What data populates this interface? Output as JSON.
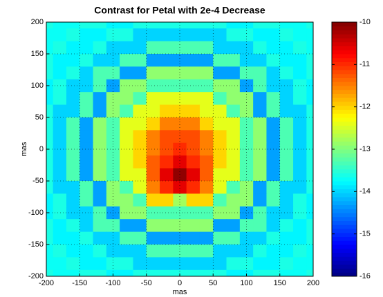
{
  "chart_data": {
    "type": "heatmap",
    "title": "Contrast for Petal with 2e-4 Decrease",
    "xlabel": "mas",
    "ylabel": "mas",
    "colormap": "jet",
    "grid": true,
    "xlim": [
      -200,
      200
    ],
    "ylim": [
      -200,
      200
    ],
    "xticks": [
      -200,
      -150,
      -100,
      -50,
      0,
      50,
      100,
      150,
      200
    ],
    "yticks": [
      -200,
      -150,
      -100,
      -50,
      0,
      50,
      100,
      150,
      200
    ],
    "clim": [
      -16,
      -10
    ],
    "cticks": [
      -16,
      -15,
      -14,
      -13,
      -12,
      -11,
      -10
    ],
    "x": [
      -200,
      -180,
      -160,
      -140,
      -120,
      -100,
      -80,
      -60,
      -40,
      -20,
      0,
      20,
      40,
      60,
      80,
      100,
      120,
      140,
      160,
      180,
      200
    ],
    "y": [
      200,
      180,
      160,
      140,
      120,
      100,
      80,
      60,
      40,
      20,
      0,
      -20,
      -40,
      -60,
      -80,
      -100,
      -120,
      -140,
      -160,
      -180,
      -200
    ],
    "z": [
      [
        -13.6,
        -13.7,
        -13.7,
        -13.6,
        -13.6,
        -13.8,
        -13.8,
        -13.6,
        -13.6,
        -13.6,
        -13.6,
        -13.6,
        -13.6,
        -13.6,
        -13.8,
        -13.8,
        -13.6,
        -13.6,
        -13.7,
        -13.7,
        -13.6
      ],
      [
        -13.7,
        -13.7,
        -13.6,
        -13.8,
        -13.8,
        -13.6,
        -13.6,
        -14.0,
        -14.0,
        -14.0,
        -14.0,
        -14.0,
        -14.0,
        -14.0,
        -13.6,
        -13.6,
        -13.8,
        -13.8,
        -13.6,
        -13.7,
        -13.7
      ],
      [
        -13.7,
        -13.6,
        -13.8,
        -13.8,
        -13.6,
        -14.0,
        -14.0,
        -14.0,
        -13.3,
        -13.3,
        -13.3,
        -13.3,
        -13.3,
        -14.0,
        -14.0,
        -14.0,
        -13.6,
        -13.8,
        -13.8,
        -13.6,
        -13.7
      ],
      [
        -13.6,
        -13.8,
        -13.8,
        -13.6,
        -14.0,
        -14.0,
        -13.3,
        -13.3,
        -14.3,
        -14.3,
        -14.3,
        -14.3,
        -14.3,
        -13.3,
        -13.3,
        -14.0,
        -14.0,
        -13.6,
        -13.8,
        -13.8,
        -13.6
      ],
      [
        -13.6,
        -13.8,
        -13.6,
        -14.0,
        -13.3,
        -13.3,
        -14.3,
        -14.3,
        -12.9,
        -12.9,
        -12.9,
        -12.9,
        -12.9,
        -14.3,
        -14.3,
        -13.3,
        -13.3,
        -14.0,
        -13.6,
        -13.8,
        -13.6
      ],
      [
        -13.8,
        -13.6,
        -14.0,
        -14.0,
        -13.3,
        -14.3,
        -12.9,
        -12.9,
        -13.3,
        -13.3,
        -13.3,
        -13.3,
        -13.3,
        -12.9,
        -12.9,
        -14.3,
        -13.3,
        -14.0,
        -14.0,
        -13.6,
        -13.8
      ],
      [
        -13.8,
        -13.6,
        -14.0,
        -13.3,
        -14.3,
        -12.9,
        -12.9,
        -13.3,
        -12.4,
        -12.4,
        -12.4,
        -12.4,
        -12.4,
        -13.3,
        -12.9,
        -12.9,
        -14.3,
        -13.3,
        -14.0,
        -13.6,
        -13.8
      ],
      [
        -13.6,
        -14.0,
        -14.0,
        -13.3,
        -14.3,
        -12.9,
        -13.3,
        -12.4,
        -12.4,
        -12.0,
        -12.0,
        -12.0,
        -12.4,
        -12.4,
        -13.3,
        -12.9,
        -14.3,
        -13.3,
        -14.0,
        -14.0,
        -13.6
      ],
      [
        -13.6,
        -14.0,
        -13.3,
        -14.3,
        -12.9,
        -13.3,
        -12.4,
        -12.4,
        -12.0,
        -11.5,
        -11.5,
        -11.5,
        -12.0,
        -12.4,
        -12.4,
        -13.3,
        -12.9,
        -14.3,
        -13.3,
        -14.0,
        -13.6
      ],
      [
        -13.6,
        -14.0,
        -13.3,
        -14.3,
        -12.9,
        -13.3,
        -12.4,
        -12.0,
        -11.5,
        -11.2,
        -11.2,
        -11.2,
        -11.5,
        -12.0,
        -12.4,
        -13.3,
        -12.9,
        -14.3,
        -13.3,
        -14.0,
        -13.6
      ],
      [
        -13.6,
        -14.0,
        -13.3,
        -14.3,
        -12.9,
        -13.3,
        -12.4,
        -12.0,
        -11.5,
        -11.2,
        -11.0,
        -11.2,
        -11.5,
        -12.0,
        -12.4,
        -13.3,
        -12.9,
        -14.3,
        -13.3,
        -14.0,
        -13.6
      ],
      [
        -13.6,
        -14.0,
        -13.3,
        -14.3,
        -12.9,
        -13.3,
        -12.4,
        -12.0,
        -11.3,
        -11.0,
        -10.6,
        -11.0,
        -11.3,
        -12.0,
        -12.4,
        -13.3,
        -12.9,
        -14.3,
        -13.3,
        -14.0,
        -13.6
      ],
      [
        -13.6,
        -14.0,
        -13.3,
        -14.3,
        -12.9,
        -13.3,
        -12.4,
        -12.4,
        -11.3,
        -10.6,
        -10.1,
        -10.6,
        -11.3,
        -12.4,
        -12.4,
        -13.3,
        -12.9,
        -14.3,
        -13.3,
        -14.0,
        -13.6
      ],
      [
        -13.6,
        -14.0,
        -14.0,
        -13.3,
        -14.3,
        -12.9,
        -13.3,
        -12.4,
        -11.5,
        -11.0,
        -10.6,
        -11.0,
        -11.5,
        -12.4,
        -13.3,
        -12.9,
        -14.3,
        -13.3,
        -14.0,
        -14.0,
        -13.6
      ],
      [
        -13.8,
        -13.6,
        -14.0,
        -13.3,
        -14.3,
        -12.9,
        -12.9,
        -13.3,
        -12.0,
        -12.0,
        -12.8,
        -12.0,
        -12.0,
        -13.3,
        -12.9,
        -12.9,
        -14.3,
        -13.3,
        -14.0,
        -13.6,
        -13.8
      ],
      [
        -13.8,
        -13.6,
        -14.0,
        -14.0,
        -13.3,
        -14.3,
        -12.9,
        -12.9,
        -13.3,
        -13.3,
        -13.3,
        -13.3,
        -13.3,
        -12.9,
        -12.9,
        -14.3,
        -13.3,
        -14.0,
        -14.0,
        -13.6,
        -13.8
      ],
      [
        -13.6,
        -13.8,
        -13.6,
        -14.0,
        -13.3,
        -13.3,
        -14.3,
        -14.3,
        -12.9,
        -12.9,
        -12.9,
        -12.9,
        -12.9,
        -14.3,
        -14.3,
        -13.3,
        -13.3,
        -14.0,
        -13.6,
        -13.8,
        -13.6
      ],
      [
        -13.6,
        -13.8,
        -13.8,
        -13.6,
        -14.0,
        -14.0,
        -13.3,
        -13.3,
        -14.3,
        -14.3,
        -14.3,
        -14.3,
        -14.3,
        -13.3,
        -13.3,
        -14.0,
        -14.0,
        -13.6,
        -13.8,
        -13.8,
        -13.6
      ],
      [
        -13.7,
        -13.6,
        -13.8,
        -13.8,
        -13.6,
        -14.0,
        -14.0,
        -14.0,
        -13.3,
        -13.3,
        -13.3,
        -13.3,
        -13.3,
        -14.0,
        -14.0,
        -14.0,
        -13.6,
        -13.8,
        -13.8,
        -13.6,
        -13.7
      ],
      [
        -13.7,
        -13.7,
        -13.6,
        -13.8,
        -13.8,
        -13.6,
        -13.6,
        -14.0,
        -14.0,
        -14.0,
        -14.0,
        -14.0,
        -14.0,
        -14.0,
        -13.6,
        -13.6,
        -13.8,
        -13.8,
        -13.6,
        -13.7,
        -13.7
      ],
      [
        -13.6,
        -13.7,
        -13.7,
        -13.6,
        -13.6,
        -13.8,
        -13.8,
        -13.6,
        -13.6,
        -13.6,
        -13.6,
        -13.6,
        -13.6,
        -13.6,
        -13.8,
        -13.8,
        -13.6,
        -13.6,
        -13.7,
        -13.7,
        -13.6
      ]
    ]
  }
}
